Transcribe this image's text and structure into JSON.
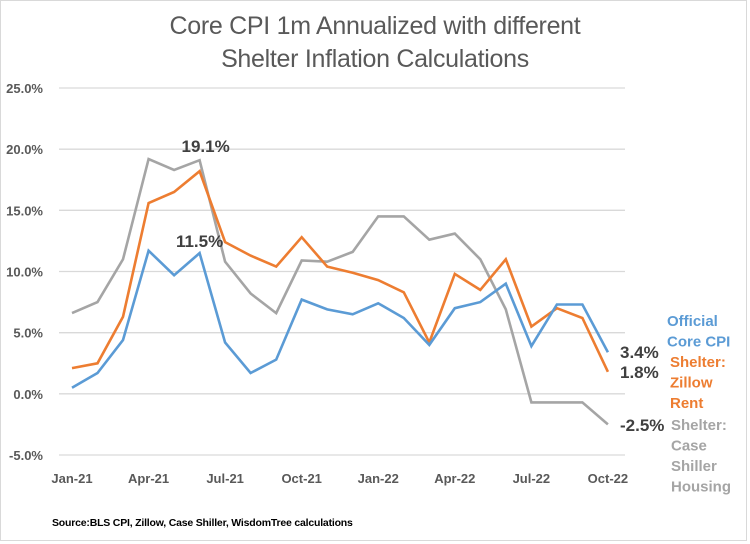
{
  "chart_data": {
    "type": "line",
    "title": [
      "Core CPI 1m Annualized with different",
      "Shelter Inflation Calculations"
    ],
    "xlabel": "",
    "ylabel": "",
    "x": [
      "Jan-21",
      "Feb-21",
      "Mar-21",
      "Apr-21",
      "May-21",
      "Jun-21",
      "Jul-21",
      "Aug-21",
      "Sep-21",
      "Oct-21",
      "Nov-21",
      "Dec-21",
      "Jan-22",
      "Feb-22",
      "Mar-22",
      "Apr-22",
      "May-22",
      "Jun-22",
      "Jul-22",
      "Aug-22",
      "Sep-22",
      "Oct-22"
    ],
    "x_tick_labels": [
      "Jan-21",
      "Apr-21",
      "Jul-21",
      "Oct-21",
      "Jan-22",
      "Apr-22",
      "Jul-22",
      "Oct-22"
    ],
    "x_tick_indices": [
      0,
      3,
      6,
      9,
      12,
      15,
      18,
      21
    ],
    "ylim": [
      -5,
      25
    ],
    "y_ticks": [
      25,
      20,
      15,
      10,
      5,
      0,
      -5
    ],
    "y_tick_labels": [
      "25.0%",
      "20.0%",
      "15.0%",
      "10.0%",
      "5.0%",
      "0.0%",
      "-5.0%"
    ],
    "grid": true,
    "legend_placement": "right-inline",
    "series": [
      {
        "name": "Official Core CPI",
        "legend_lines": [
          "Official",
          "Core CPI"
        ],
        "color": "#5B9BD5",
        "values": [
          0.5,
          1.7,
          4.4,
          11.7,
          9.7,
          11.5,
          4.2,
          1.7,
          2.8,
          7.7,
          6.9,
          6.5,
          7.4,
          6.2,
          4.0,
          7.0,
          7.5,
          9.0,
          3.9,
          7.3,
          7.3,
          3.4
        ],
        "end_label": "3.4%"
      },
      {
        "name": "Shelter: Zillow Rent",
        "legend_lines": [
          "Shelter:",
          "Zillow",
          "Rent"
        ],
        "color": "#ED7D31",
        "values": [
          2.1,
          2.5,
          6.3,
          15.6,
          16.5,
          18.2,
          12.4,
          11.3,
          10.4,
          12.8,
          10.4,
          9.9,
          9.3,
          8.3,
          4.2,
          9.8,
          8.5,
          11.0,
          5.5,
          7.0,
          6.2,
          1.8
        ],
        "end_label": "1.8%"
      },
      {
        "name": "Shelter: Case Shiller Housing",
        "legend_lines": [
          "Shelter:",
          "Case",
          "Shiller",
          "Housing"
        ],
        "color": "#A5A5A5",
        "values": [
          6.6,
          7.5,
          11.0,
          19.2,
          18.3,
          19.1,
          10.8,
          8.2,
          6.6,
          10.9,
          10.8,
          11.6,
          14.5,
          14.5,
          12.6,
          13.1,
          11.0,
          6.9,
          -0.7,
          -0.7,
          -0.7,
          -2.5
        ],
        "end_label": "-2.5%"
      }
    ],
    "annotations": [
      {
        "text": "19.1%",
        "series": "Shelter: Case Shiller Housing",
        "x": "Jun-21",
        "value": 19.1
      },
      {
        "text": "11.5%",
        "series": "Official Core CPI",
        "x": "Jun-21",
        "value": 11.5
      }
    ],
    "source": "Source:BLS CPI, Zillow, Case Shiller, WisdomTree calculations"
  }
}
